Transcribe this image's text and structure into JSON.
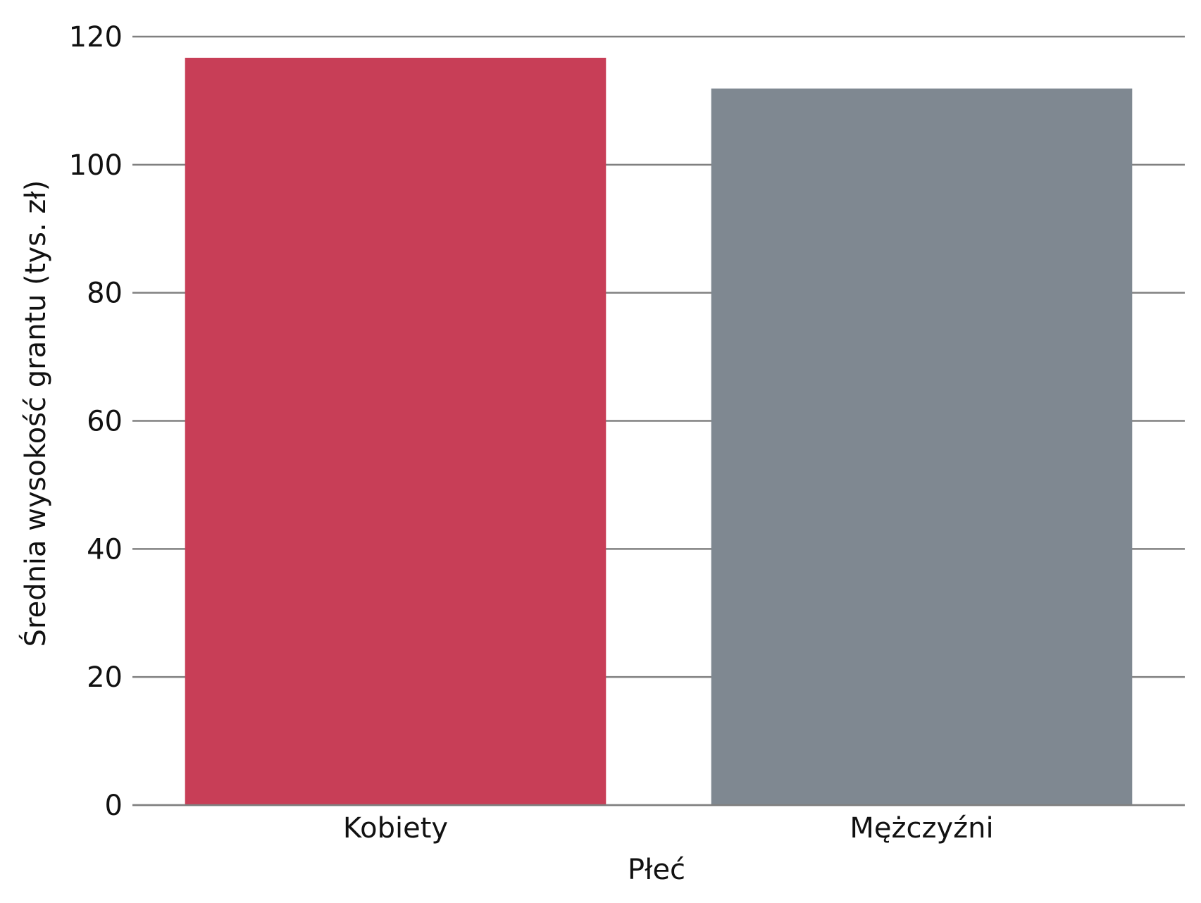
{
  "chart_data": {
    "type": "bar",
    "categories": [
      "Kobiety",
      "Mężczyźni"
    ],
    "values": [
      116.7,
      111.9
    ],
    "colors": [
      "#c83e57",
      "#7f8891"
    ],
    "title": "",
    "xlabel": "Płeć",
    "ylabel": "Średnia wysokość grantu (tys. zł)",
    "ylim": [
      0,
      120
    ],
    "yticks": [
      0,
      20,
      40,
      60,
      80,
      100,
      120
    ],
    "grid": "horizontal",
    "grid_color": "#808080",
    "legend": "none"
  }
}
